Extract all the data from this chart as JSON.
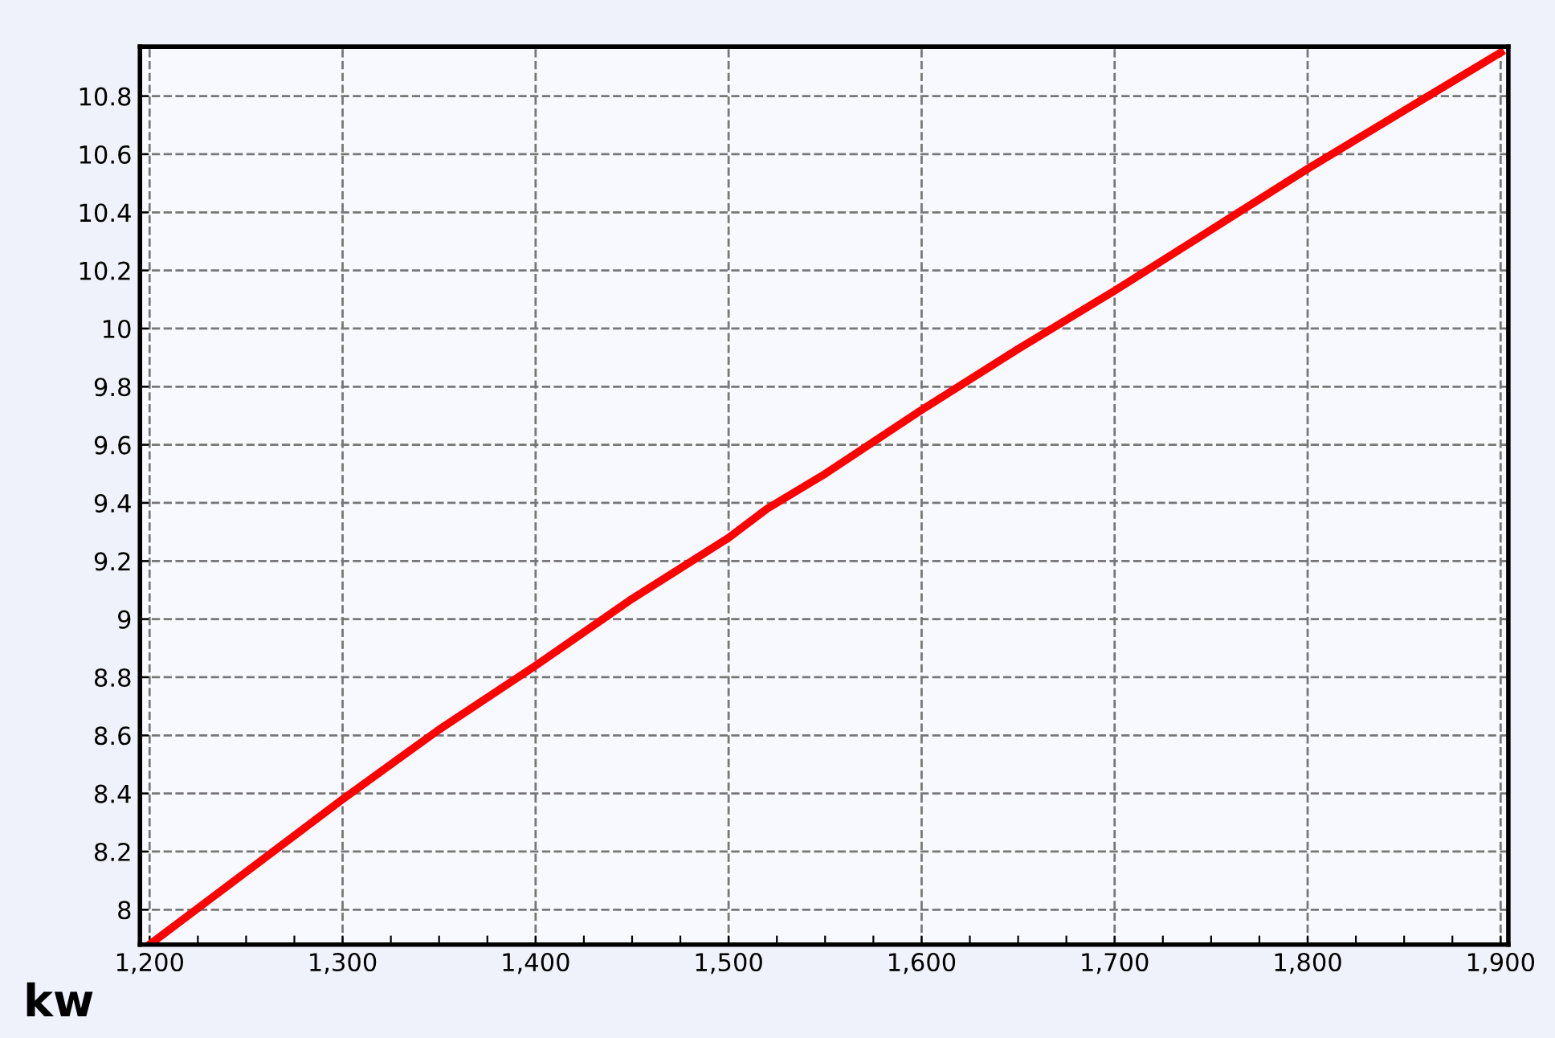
{
  "chart_data": {
    "type": "line",
    "x": [
      1200,
      1250,
      1300,
      1350,
      1400,
      1450,
      1500,
      1520,
      1550,
      1600,
      1650,
      1700,
      1750,
      1800,
      1850,
      1900
    ],
    "series": [
      {
        "color": "#ff0000",
        "values": [
          7.88,
          8.13,
          8.38,
          8.62,
          8.84,
          9.07,
          9.28,
          9.38,
          9.5,
          9.72,
          9.93,
          10.13,
          10.34,
          10.55,
          10.75,
          10.95
        ]
      }
    ],
    "xlim": [
      1195,
      1904
    ],
    "ylim": [
      7.88,
      10.97
    ],
    "xticks": [
      {
        "value": 1200,
        "label": "1,200"
      },
      {
        "value": 1225,
        "label": null
      },
      {
        "value": 1250,
        "label": null
      },
      {
        "value": 1275,
        "label": null
      },
      {
        "value": 1300,
        "label": "1,300"
      },
      {
        "value": 1325,
        "label": null
      },
      {
        "value": 1350,
        "label": null
      },
      {
        "value": 1375,
        "label": null
      },
      {
        "value": 1400,
        "label": "1,400"
      },
      {
        "value": 1425,
        "label": null
      },
      {
        "value": 1450,
        "label": null
      },
      {
        "value": 1475,
        "label": null
      },
      {
        "value": 1500,
        "label": "1,500"
      },
      {
        "value": 1525,
        "label": null
      },
      {
        "value": 1550,
        "label": null
      },
      {
        "value": 1575,
        "label": null
      },
      {
        "value": 1600,
        "label": "1,600"
      },
      {
        "value": 1625,
        "label": null
      },
      {
        "value": 1650,
        "label": null
      },
      {
        "value": 1675,
        "label": null
      },
      {
        "value": 1700,
        "label": "1,700"
      },
      {
        "value": 1725,
        "label": null
      },
      {
        "value": 1750,
        "label": null
      },
      {
        "value": 1775,
        "label": null
      },
      {
        "value": 1800,
        "label": "1,800"
      },
      {
        "value": 1825,
        "label": null
      },
      {
        "value": 1850,
        "label": null
      },
      {
        "value": 1875,
        "label": null
      },
      {
        "value": 1900,
        "label": "1,900"
      }
    ],
    "yticks": [
      8,
      8.2,
      8.4,
      8.6,
      8.8,
      9,
      9.2,
      9.4,
      9.6,
      9.8,
      10,
      10.2,
      10.4,
      10.6,
      10.8
    ],
    "xlabel": "kw",
    "grid": true,
    "marker": "none",
    "line_style": "solid",
    "legend": false
  }
}
